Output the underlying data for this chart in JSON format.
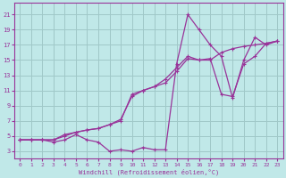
{
  "xlabel": "Windchill (Refroidissement éolien,°C)",
  "bg_color": "#c0e8e8",
  "grid_color": "#a0c8c8",
  "line_color": "#993399",
  "x_ticks": [
    0,
    1,
    2,
    3,
    4,
    5,
    6,
    7,
    8,
    9,
    10,
    11,
    12,
    13,
    14,
    15,
    16,
    17,
    18,
    19,
    20,
    21,
    22,
    23
  ],
  "y_ticks": [
    3,
    5,
    7,
    9,
    11,
    13,
    15,
    17,
    19,
    21
  ],
  "xlim": [
    -0.5,
    23.5
  ],
  "ylim": [
    2.0,
    22.5
  ],
  "series1_x": [
    0,
    1,
    2,
    3,
    4,
    5,
    6,
    7,
    8,
    9,
    10,
    11,
    12,
    13,
    14,
    15,
    16,
    17,
    18,
    19,
    20,
    21,
    22,
    23
  ],
  "series1_y": [
    4.5,
    4.5,
    4.5,
    4.2,
    4.5,
    5.2,
    4.5,
    4.2,
    3.0,
    3.2,
    3.0,
    3.5,
    3.2,
    3.2,
    14.5,
    21.0,
    19.0,
    17.0,
    15.5,
    10.0,
    15.0,
    18.0,
    17.0,
    17.5
  ],
  "series2_x": [
    0,
    1,
    2,
    3,
    4,
    5,
    6,
    7,
    8,
    9,
    10,
    11,
    12,
    13,
    14,
    15,
    16,
    17,
    18,
    19,
    20,
    21,
    22,
    23
  ],
  "series2_y": [
    4.5,
    4.5,
    4.5,
    4.5,
    5.2,
    5.5,
    5.8,
    6.0,
    6.5,
    7.0,
    10.5,
    11.0,
    11.5,
    12.5,
    14.0,
    15.5,
    15.0,
    15.2,
    10.5,
    10.2,
    14.5,
    15.5,
    17.2,
    17.5
  ],
  "series3_x": [
    0,
    1,
    2,
    3,
    4,
    5,
    6,
    7,
    8,
    9,
    10,
    11,
    12,
    13,
    14,
    15,
    16,
    17,
    18,
    19,
    20,
    21,
    22,
    23
  ],
  "series3_y": [
    4.5,
    4.5,
    4.5,
    4.5,
    5.0,
    5.5,
    5.8,
    6.0,
    6.5,
    7.2,
    10.2,
    11.0,
    11.5,
    12.0,
    13.5,
    15.2,
    15.0,
    15.0,
    16.0,
    16.5,
    16.8,
    17.0,
    17.2,
    17.5
  ]
}
